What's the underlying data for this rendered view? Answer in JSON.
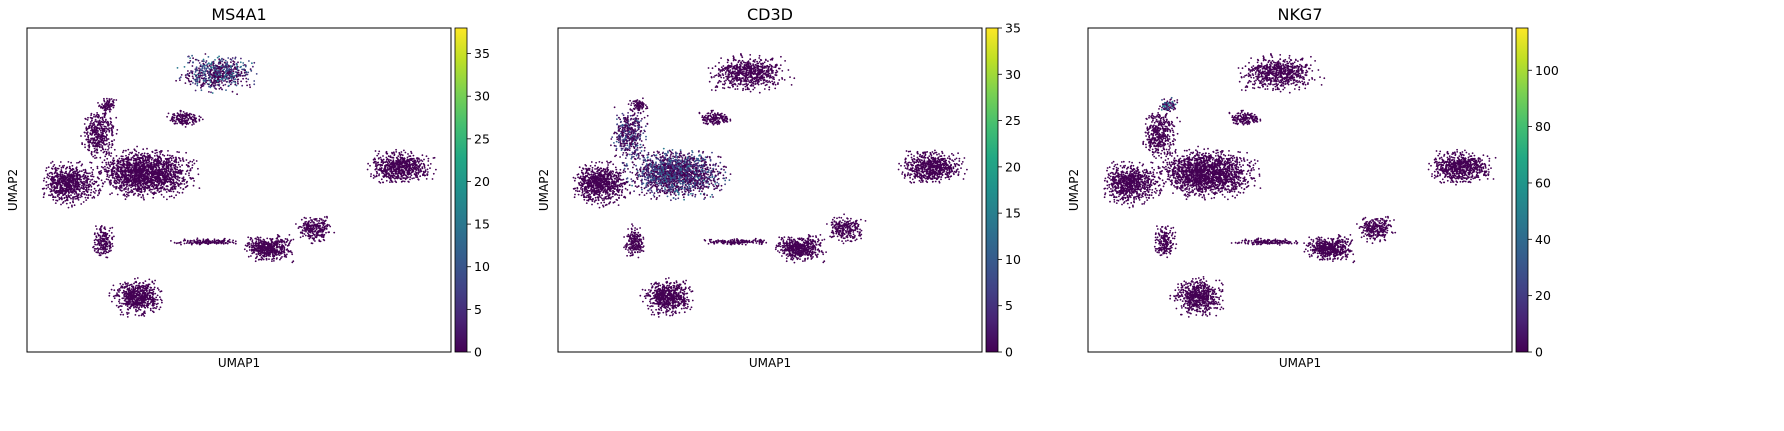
{
  "chart_data": [
    {
      "type": "scatter",
      "title": "MS4A1",
      "xlabel": "UMAP1",
      "ylabel": "UMAP2",
      "colorbar": {
        "min": 0,
        "max": 38,
        "ticks": [
          0,
          5,
          10,
          15,
          20,
          25,
          30,
          35
        ],
        "colormap": "viridis"
      },
      "hotspots": [
        {
          "region": "upper-center island",
          "level": 12
        }
      ]
    },
    {
      "type": "scatter",
      "title": "CD3D",
      "xlabel": "UMAP1",
      "ylabel": "UMAP2",
      "colorbar": {
        "min": 0,
        "max": 35,
        "ticks": [
          0,
          5,
          10,
          15,
          20,
          25,
          30,
          35
        ],
        "colormap": "viridis"
      },
      "hotspots": [
        {
          "region": "left-center large cluster",
          "level": 10
        },
        {
          "region": "upper-left arm",
          "level": 8
        }
      ]
    },
    {
      "type": "scatter",
      "title": "NKG7",
      "xlabel": "UMAP1",
      "ylabel": "UMAP2",
      "colorbar": {
        "min": 0,
        "max": 115,
        "ticks": [
          0,
          20,
          40,
          60,
          80,
          100
        ],
        "colormap": "viridis"
      },
      "hotspots": [
        {
          "region": "upper-left arm tip",
          "level": 45
        }
      ]
    }
  ]
}
